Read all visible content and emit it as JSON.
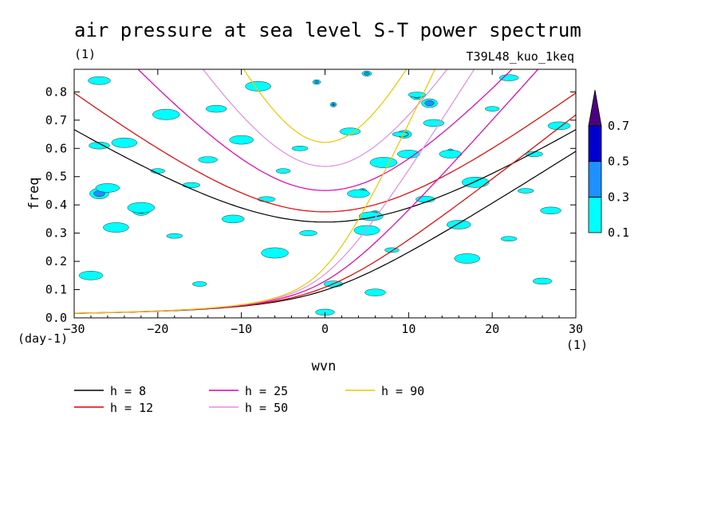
{
  "chart_data": {
    "type": "contour",
    "title": "air pressure at sea level S-T power spectrum",
    "title_unit": "(1)",
    "run_label": "T39L48_kuo_1keq",
    "xlabel": "wvn",
    "x_unit": "(1)",
    "ylabel": "freq",
    "y_unit": "(day-1)",
    "xlim": [
      -30,
      30
    ],
    "ylim": [
      0,
      0.88
    ],
    "xticks": [
      "-30",
      "-20",
      "-10",
      "0",
      "10",
      "20",
      "30"
    ],
    "yticks": [
      "0.0",
      "0.1",
      "0.2",
      "0.3",
      "0.4",
      "0.5",
      "0.6",
      "0.7",
      "0.8"
    ],
    "colorbar": {
      "levels": [
        "0.1",
        "0.3",
        "0.5",
        "0.7"
      ],
      "colors": [
        "#00ffff",
        "#1e90ff",
        "#0000cd",
        "#4b0082"
      ]
    },
    "contour_blobs": [
      {
        "x": 1.0,
        "y": 0.755,
        "level": 3
      },
      {
        "x": 4.5,
        "y": 0.45,
        "level": 2
      },
      {
        "x": 6.0,
        "y": 0.37,
        "level": 2
      },
      {
        "x": 5.0,
        "y": 0.31,
        "level": 2
      },
      {
        "x": 11.0,
        "y": 0.785,
        "level": 2
      },
      {
        "x": 9.5,
        "y": 0.65,
        "level": 2
      },
      {
        "x": 12.5,
        "y": 0.76,
        "level": 2
      },
      {
        "x": -22.0,
        "y": 0.38,
        "level": 2
      },
      {
        "x": -27.0,
        "y": 0.44,
        "level": 2
      },
      {
        "x": 15.0,
        "y": 0.59,
        "level": 2
      },
      {
        "x": -1.0,
        "y": 0.835,
        "level": 2
      },
      {
        "x": 5.0,
        "y": 0.865,
        "level": 2
      },
      {
        "x": 0.0,
        "y": 0.02,
        "level": 1
      },
      {
        "x": 6.0,
        "y": 0.09,
        "level": 1
      },
      {
        "x": -27.0,
        "y": 0.84,
        "level": 1
      },
      {
        "x": -26.0,
        "y": 0.46,
        "level": 1
      },
      {
        "x": -25.0,
        "y": 0.32,
        "level": 1
      },
      {
        "x": -22.0,
        "y": 0.39,
        "level": 1
      },
      {
        "x": -20.0,
        "y": 0.52,
        "level": 1
      },
      {
        "x": -18.0,
        "y": 0.29,
        "level": 1
      },
      {
        "x": -16.0,
        "y": 0.47,
        "level": 1
      },
      {
        "x": -14.0,
        "y": 0.56,
        "level": 1
      },
      {
        "x": -13.0,
        "y": 0.74,
        "level": 1
      },
      {
        "x": -11.0,
        "y": 0.35,
        "level": 1
      },
      {
        "x": -10.0,
        "y": 0.63,
        "level": 1
      },
      {
        "x": -8.0,
        "y": 0.82,
        "level": 1
      },
      {
        "x": -6.0,
        "y": 0.23,
        "level": 1
      },
      {
        "x": -5.0,
        "y": 0.52,
        "level": 1
      },
      {
        "x": -3.0,
        "y": 0.6,
        "level": 1
      },
      {
        "x": -2.0,
        "y": 0.3,
        "level": 1
      },
      {
        "x": 1.0,
        "y": 0.12,
        "level": 1
      },
      {
        "x": 3.0,
        "y": 0.66,
        "level": 1
      },
      {
        "x": 4.0,
        "y": 0.44,
        "level": 1
      },
      {
        "x": 5.5,
        "y": 0.36,
        "level": 1
      },
      {
        "x": 5.0,
        "y": 0.31,
        "level": 1
      },
      {
        "x": 7.0,
        "y": 0.55,
        "level": 1
      },
      {
        "x": 8.0,
        "y": 0.24,
        "level": 1
      },
      {
        "x": 9.0,
        "y": 0.65,
        "level": 1
      },
      {
        "x": 11.0,
        "y": 0.79,
        "level": 1
      },
      {
        "x": 12.0,
        "y": 0.42,
        "level": 1
      },
      {
        "x": 13.0,
        "y": 0.69,
        "level": 1
      },
      {
        "x": 15.0,
        "y": 0.58,
        "level": 1
      },
      {
        "x": 16.0,
        "y": 0.33,
        "level": 1
      },
      {
        "x": 17.0,
        "y": 0.21,
        "level": 1
      },
      {
        "x": 18.0,
        "y": 0.48,
        "level": 1
      },
      {
        "x": 20.0,
        "y": 0.74,
        "level": 1
      },
      {
        "x": 22.0,
        "y": 0.28,
        "level": 1
      },
      {
        "x": 25.0,
        "y": 0.58,
        "level": 1
      },
      {
        "x": 26.0,
        "y": 0.13,
        "level": 1
      },
      {
        "x": 27.0,
        "y": 0.38,
        "level": 1
      },
      {
        "x": 28.0,
        "y": 0.68,
        "level": 1
      },
      {
        "x": -28.0,
        "y": 0.15,
        "level": 1
      },
      {
        "x": -24.0,
        "y": 0.62,
        "level": 1
      },
      {
        "x": -19.0,
        "y": 0.72,
        "level": 1
      },
      {
        "x": -15.0,
        "y": 0.12,
        "level": 1
      },
      {
        "x": 24.0,
        "y": 0.45,
        "level": 1
      },
      {
        "x": -7.0,
        "y": 0.42,
        "level": 1
      },
      {
        "x": 22.0,
        "y": 0.85,
        "level": 1
      },
      {
        "x": -27.0,
        "y": 0.61,
        "level": 1
      },
      {
        "x": 10.0,
        "y": 0.58,
        "level": 1
      }
    ],
    "series": [
      {
        "name": "h =  8",
        "h": 8,
        "color": "#000000"
      },
      {
        "name": "h = 12",
        "h": 12,
        "color": "#dd0000"
      },
      {
        "name": "h = 25",
        "h": 25,
        "color": "#dd00aa"
      },
      {
        "name": "h = 50",
        "h": 50,
        "color": "#e08ee0"
      },
      {
        "name": "h = 90",
        "h": 90,
        "color": "#e8c800"
      }
    ]
  }
}
